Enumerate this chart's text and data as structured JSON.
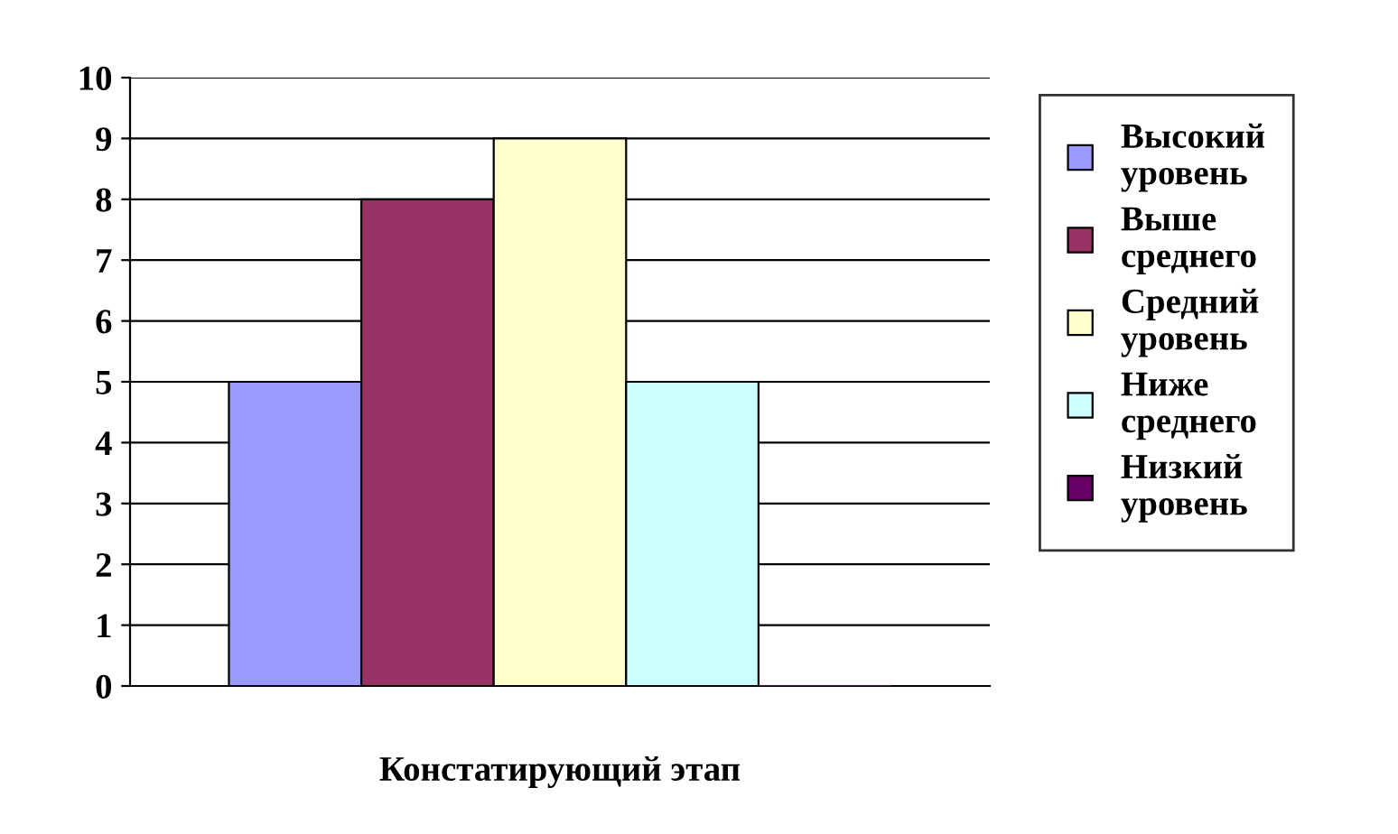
{
  "chart_data": {
    "type": "bar",
    "categories": [
      "Констатирующий этап"
    ],
    "series": [
      {
        "name": "Высокий уровень",
        "color": "#9999ff",
        "values": [
          5
        ]
      },
      {
        "name": "Выше среднего",
        "color": "#993366",
        "values": [
          8
        ]
      },
      {
        "name": "Средний уровень",
        "color": "#ffffcc",
        "values": [
          9
        ]
      },
      {
        "name": "Ниже среднего",
        "color": "#ccffff",
        "values": [
          5
        ]
      },
      {
        "name": "Низкий уровень",
        "color": "#660066",
        "values": [
          0
        ]
      }
    ],
    "ylim": [
      0,
      10
    ],
    "yticks": [
      0,
      1,
      2,
      3,
      4,
      5,
      6,
      7,
      8,
      9,
      10
    ],
    "grid": "y",
    "legend": "right"
  }
}
